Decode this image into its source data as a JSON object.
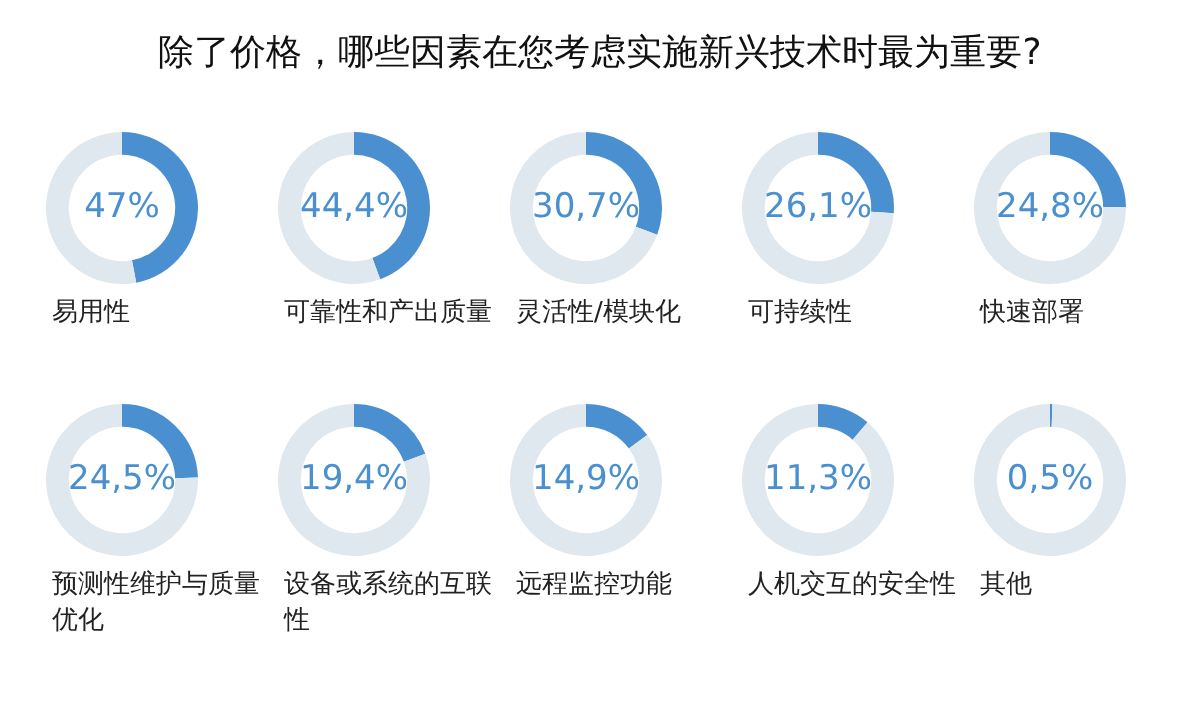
{
  "chart_data": [
    {
      "type": "other",
      "title": "除了价格，哪些因素在您考虑实施新兴技术时最为重要?"
    },
    {
      "type": "donut",
      "title": "易用性",
      "categories": [
        null,
        null
      ],
      "values": [
        47,
        53
      ],
      "colors": [
        "#4a90d0",
        "#dfe8ef"
      ],
      "value_labels": [
        "47%",
        null
      ]
    },
    {
      "type": "donut",
      "title": "可靠性和产出质量",
      "categories": [
        null,
        null
      ],
      "values": [
        44.4,
        55.6
      ],
      "colors": [
        "#4a90d0",
        "#dfe8ef"
      ],
      "value_labels": [
        "44,4%",
        null
      ]
    },
    {
      "type": "donut",
      "title": "灵活性/模块化",
      "categories": [
        null,
        null
      ],
      "values": [
        30.7,
        69.3
      ],
      "colors": [
        "#4a90d0",
        "#dfe8ef"
      ],
      "value_labels": [
        "30,7%",
        null
      ]
    },
    {
      "type": "donut",
      "title": "可持续性",
      "categories": [
        null,
        null
      ],
      "values": [
        26.1,
        73.9
      ],
      "colors": [
        "#4a90d0",
        "#dfe8ef"
      ],
      "value_labels": [
        "26,1%",
        null
      ]
    },
    {
      "type": "donut",
      "title": "快速部署",
      "categories": [
        null,
        null
      ],
      "values": [
        24.8,
        75.2
      ],
      "colors": [
        "#4a90d0",
        "#dfe8ef"
      ],
      "value_labels": [
        "24,8%",
        null
      ]
    },
    {
      "type": "donut",
      "title": "预测性维护与质量优化",
      "categories": [
        null,
        null
      ],
      "values": [
        24.5,
        75.5
      ],
      "colors": [
        "#4a90d0",
        "#dfe8ef"
      ],
      "value_labels": [
        "24,5%",
        null
      ]
    },
    {
      "type": "donut",
      "title": "设备或系统的互联性",
      "categories": [
        null,
        null
      ],
      "values": [
        19.4,
        80.6
      ],
      "colors": [
        "#4a90d0",
        "#dfe8ef"
      ],
      "value_labels": [
        "19,4%",
        null
      ]
    },
    {
      "type": "donut",
      "title": "远程监控功能",
      "categories": [
        null,
        null
      ],
      "values": [
        14.9,
        85.1
      ],
      "colors": [
        "#4a90d0",
        "#dfe8ef"
      ],
      "value_labels": [
        "14,9%",
        null
      ]
    },
    {
      "type": "donut",
      "title": "人机交互的安全性",
      "categories": [
        null,
        null
      ],
      "values": [
        11.3,
        88.7
      ],
      "colors": [
        "#4a90d0",
        "#dfe8ef"
      ],
      "value_labels": [
        "11,3%",
        null
      ]
    },
    {
      "type": "donut",
      "title": "其他",
      "categories": [
        null,
        null
      ],
      "values": [
        0.5,
        99.5
      ],
      "colors": [
        "#4a90d0",
        "#dfe8ef"
      ],
      "value_labels": [
        "0,5%",
        null
      ]
    }
  ]
}
